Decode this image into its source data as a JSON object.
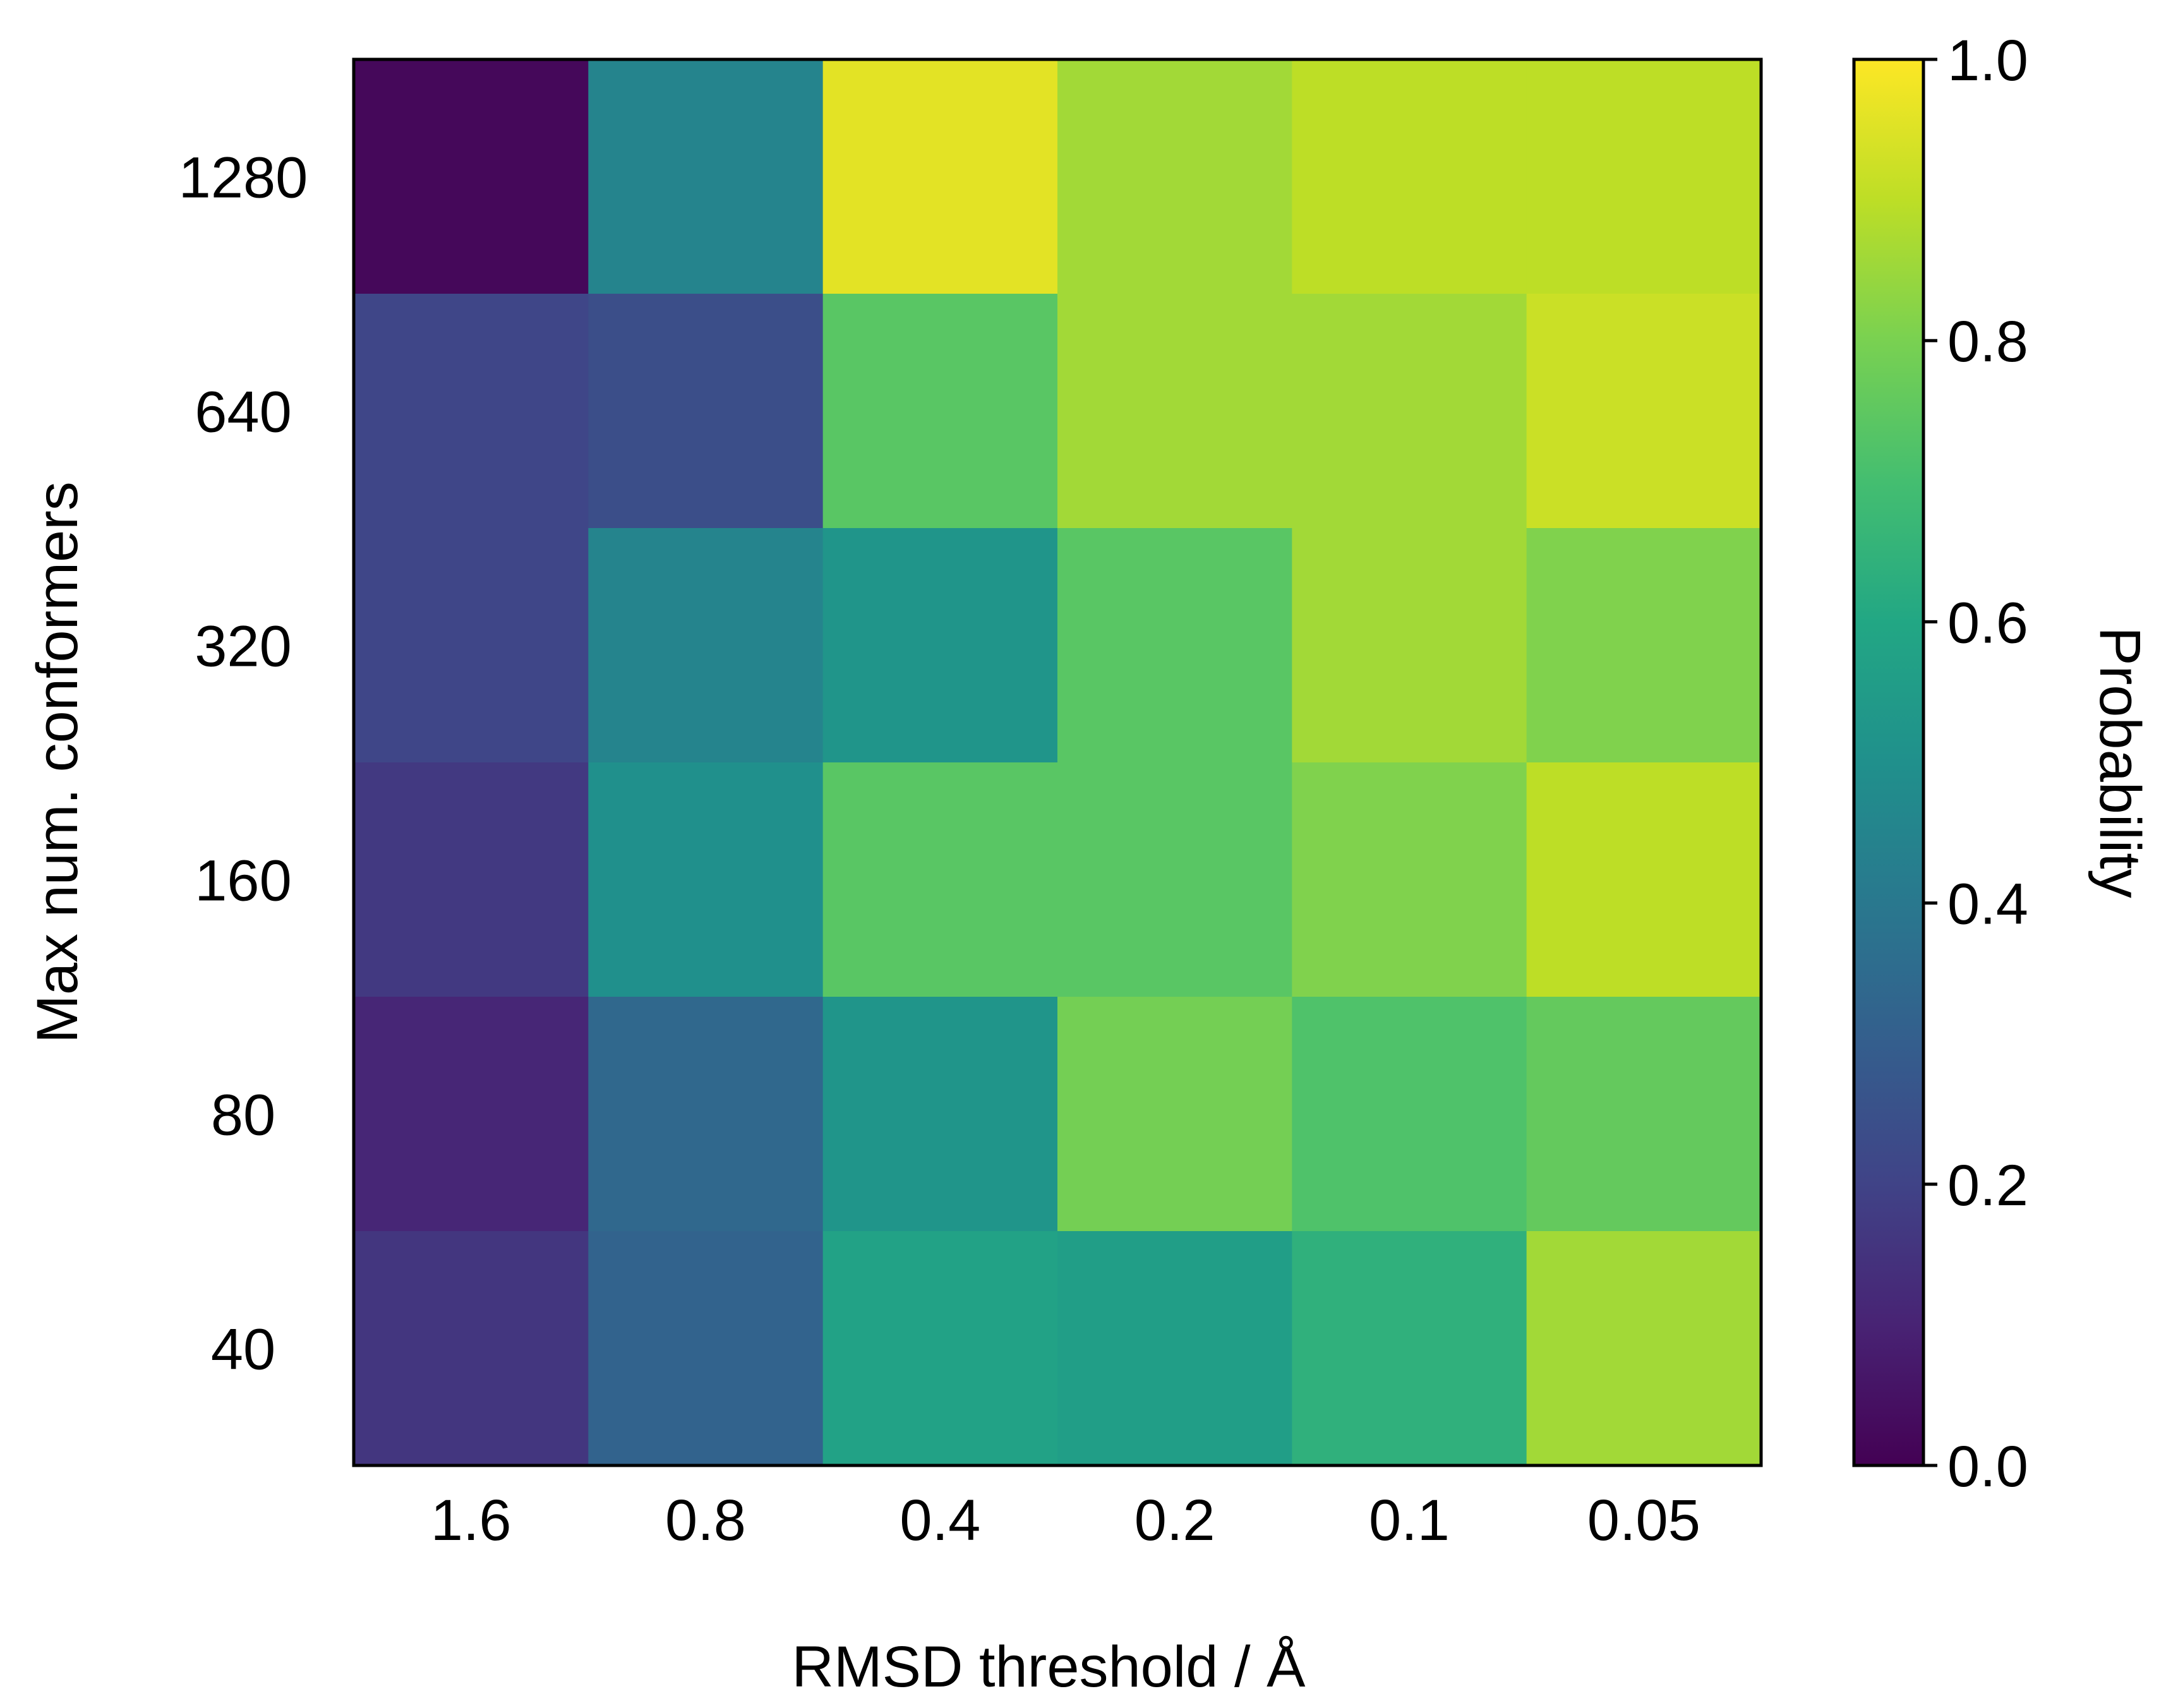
{
  "chart_data": {
    "type": "heatmap",
    "title": "",
    "xlabel": "RMSD threshold / Å",
    "ylabel": "Max num. conformers",
    "x_categories": [
      "1.6",
      "0.8",
      "0.4",
      "0.2",
      "0.1",
      "0.05"
    ],
    "y_categories": [
      "1280",
      "640",
      "320",
      "160",
      "80",
      "40"
    ],
    "values": [
      [
        0.02,
        0.45,
        0.96,
        0.86,
        0.9,
        0.9
      ],
      [
        0.21,
        0.24,
        0.74,
        0.86,
        0.86,
        0.92
      ],
      [
        0.21,
        0.45,
        0.52,
        0.74,
        0.86,
        0.81
      ],
      [
        0.17,
        0.5,
        0.74,
        0.74,
        0.81,
        0.9
      ],
      [
        0.11,
        0.34,
        0.52,
        0.79,
        0.72,
        0.76
      ],
      [
        0.16,
        0.32,
        0.58,
        0.56,
        0.64,
        0.86
      ]
    ],
    "colorbar": {
      "label": "Probability",
      "range": [
        0.0,
        1.0
      ],
      "ticks": [
        "0.0",
        "0.2",
        "0.4",
        "0.6",
        "0.8",
        "1.0"
      ],
      "colormap": "viridis"
    },
    "grid": false,
    "colorbar_placement": "right"
  }
}
